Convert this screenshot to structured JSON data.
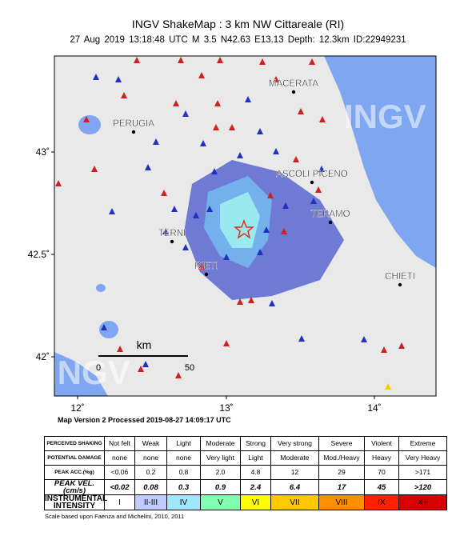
{
  "header": {
    "title": "INGV ShakeMap : 3 km NW Cittareale (RI)",
    "subtitle": "27 Aug 2019 13:18:48 UTC   M 3.5   N42.63 E13.13   Depth: 12.3km   ID:22949231"
  },
  "map": {
    "watermark": "INGV",
    "cities": [
      "MACERATA",
      "PERUGIA",
      "ASCOLI PICENO",
      "TERAMO",
      "TERNI",
      "RIETI",
      "CHIETI"
    ],
    "lat_labels": [
      "43˚",
      "42.5˚",
      "42˚"
    ],
    "lon_labels": [
      "12˚",
      "13˚",
      "14˚"
    ],
    "scale": {
      "unit": "km",
      "start": "0",
      "end": "50"
    },
    "version": "Map Version 2 Processed 2019-08-27 14:09:17 UTC"
  },
  "table": {
    "rows": [
      [
        "PERCEIVED SHAKING",
        "Not felt",
        "Weak",
        "Light",
        "Moderate",
        "Strong",
        "Very strong",
        "Severe",
        "Violent",
        "Extreme"
      ],
      [
        "POTENTIAL DAMAGE",
        "none",
        "none",
        "none",
        "Very light",
        "Light",
        "Moderate",
        "Mod./Heavy",
        "Heavy",
        "Very Heavy"
      ],
      [
        "PEAK ACC.(%g)",
        "<0.06",
        "0.2",
        "0.8",
        "2.0",
        "4.8",
        "12",
        "29",
        "70",
        ">171"
      ],
      [
        "PEAK VEL.(cm/s)",
        "<0.02",
        "0.08",
        "0.3",
        "0.9",
        "2.4",
        "6.4",
        "17",
        "45",
        ">120"
      ],
      [
        "INSTRUMENTAL INTENSITY",
        "I",
        "II-III",
        "IV",
        "V",
        "VI",
        "VII",
        "VIII",
        "IX",
        "X+"
      ]
    ]
  },
  "footnote": "Scale based upon Faenza and Michelini, 2010, 2011"
}
